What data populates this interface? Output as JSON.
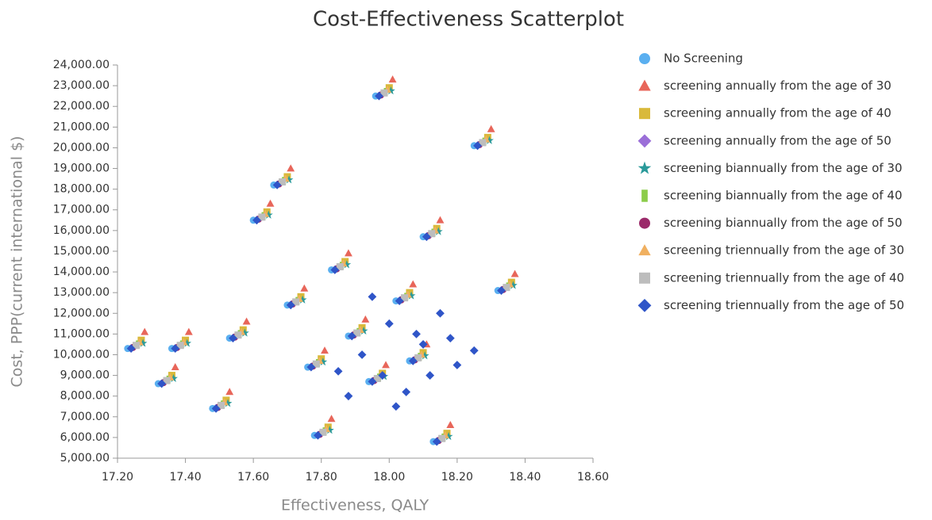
{
  "chart_data": {
    "type": "scatter",
    "title": "Cost-Effectiveness Scatterplot",
    "x_label": "Effectiveness, QALY",
    "y_label": "Cost, PPP(current international $)",
    "xlim": [
      17.2,
      18.6
    ],
    "xticks": [
      {
        "value": 17.2,
        "label": "17.20"
      },
      {
        "value": 17.4,
        "label": "17.40"
      },
      {
        "value": 17.6,
        "label": "17.60"
      },
      {
        "value": 17.8,
        "label": "17.80"
      },
      {
        "value": 18.0,
        "label": "18.00"
      },
      {
        "value": 18.2,
        "label": "18.20"
      },
      {
        "value": 18.4,
        "label": "18.40"
      },
      {
        "value": 18.6,
        "label": "18.60"
      }
    ],
    "ylim": [
      5000,
      24000
    ],
    "yticks": [
      {
        "value": 5000,
        "label": "5,000.00"
      },
      {
        "value": 6000,
        "label": "6,000.00"
      },
      {
        "value": 7000,
        "label": "7,000.00"
      },
      {
        "value": 8000,
        "label": "8,000.00"
      },
      {
        "value": 9000,
        "label": "9,000.00"
      },
      {
        "value": 10000,
        "label": "10,000.00"
      },
      {
        "value": 11000,
        "label": "11,000.00"
      },
      {
        "value": 12000,
        "label": "12,000.00"
      },
      {
        "value": 13000,
        "label": "13,000.00"
      },
      {
        "value": 14000,
        "label": "14,000.00"
      },
      {
        "value": 15000,
        "label": "15,000.00"
      },
      {
        "value": 16000,
        "label": "16,000.00"
      },
      {
        "value": 17000,
        "label": "17,000.00"
      },
      {
        "value": 18000,
        "label": "18,000.00"
      },
      {
        "value": 19000,
        "label": "19,000.00"
      },
      {
        "value": 20000,
        "label": "20,000.00"
      },
      {
        "value": 21000,
        "label": "21,000.00"
      },
      {
        "value": 22000,
        "label": "22,000.00"
      },
      {
        "value": 23000,
        "label": "23,000.00"
      },
      {
        "value": 24000,
        "label": "24,000.00"
      }
    ],
    "grid": false,
    "legend": "right",
    "series": [
      {
        "name": "No Screening",
        "color": "#5aaff0",
        "marker": "circle",
        "x": [
          17.23,
          17.32,
          17.36,
          17.48,
          17.53,
          17.6,
          17.66,
          17.7,
          17.76,
          17.78,
          17.83,
          17.88,
          17.94,
          17.96,
          18.02,
          18.06,
          18.1,
          18.13,
          18.25,
          18.32
        ],
        "y": [
          10300,
          8600,
          10300,
          7400,
          10800,
          16500,
          18200,
          12400,
          9400,
          6100,
          14100,
          10900,
          8700,
          22500,
          12600,
          9700,
          15700,
          5800,
          20100,
          13100
        ]
      },
      {
        "name": "screening annually from the age of 30",
        "color": "#e8665a",
        "marker": "triangle",
        "x": [
          17.28,
          17.37,
          17.41,
          17.53,
          17.58,
          17.65,
          17.71,
          17.75,
          17.81,
          17.83,
          17.88,
          17.93,
          17.99,
          18.01,
          18.07,
          18.11,
          18.15,
          18.18,
          18.3,
          18.37
        ],
        "y": [
          11100,
          9400,
          11100,
          8200,
          11600,
          17300,
          19000,
          13200,
          10200,
          6900,
          14900,
          11700,
          9500,
          23300,
          13400,
          10500,
          16500,
          6600,
          20900,
          13900
        ]
      },
      {
        "name": "screening annually from the age of 40",
        "color": "#d9b93a",
        "marker": "square",
        "x": [
          17.27,
          17.36,
          17.4,
          17.52,
          17.57,
          17.64,
          17.7,
          17.74,
          17.8,
          17.82,
          17.87,
          17.92,
          17.98,
          18.0,
          18.06,
          18.1,
          18.14,
          18.17,
          18.29,
          18.36
        ],
        "y": [
          10700,
          9000,
          10700,
          7800,
          11200,
          16900,
          18600,
          12800,
          9800,
          6500,
          14500,
          11300,
          9100,
          22900,
          13000,
          10100,
          16100,
          6200,
          20500,
          13500
        ]
      },
      {
        "name": "screening annually from the age of 50",
        "color": "#9b6fd8",
        "marker": "diamond",
        "x": [
          17.25,
          17.34,
          17.38,
          17.5,
          17.55,
          17.62,
          17.68,
          17.72,
          17.78,
          17.8,
          17.85,
          17.9,
          17.96,
          17.98,
          18.04,
          18.08,
          18.12,
          18.15,
          18.27,
          18.34
        ],
        "y": [
          10400,
          8700,
          10400,
          7500,
          10900,
          16600,
          18300,
          12500,
          9500,
          6200,
          14200,
          11000,
          8800,
          22600,
          12700,
          9800,
          15800,
          5900,
          20200,
          13200
        ]
      },
      {
        "name": "screening biannually from the age of 30",
        "color": "#2a9a9a",
        "marker": "star",
        "x": [
          17.275,
          17.365,
          17.405,
          17.525,
          17.575,
          17.645,
          17.705,
          17.745,
          17.805,
          17.825,
          17.875,
          17.925,
          17.985,
          18.005,
          18.065,
          18.105,
          18.145,
          18.175,
          18.295,
          18.365
        ],
        "y": [
          10550,
          8850,
          10550,
          7650,
          11050,
          16750,
          18450,
          12650,
          9650,
          6350,
          14350,
          11150,
          8950,
          22750,
          12850,
          9950,
          15950,
          6050,
          20350,
          13350
        ]
      },
      {
        "name": "screening biannually from the age of 40",
        "color": "#8ccc4a",
        "marker": "rect",
        "x": [
          17.26,
          17.35,
          17.39,
          17.51,
          17.56,
          17.63,
          17.69,
          17.73,
          17.79,
          17.81,
          17.86,
          17.91,
          17.97,
          17.99,
          18.05,
          18.09,
          18.13,
          18.16,
          18.28,
          18.35
        ],
        "y": [
          10500,
          8800,
          10500,
          7600,
          11000,
          16700,
          18400,
          12600,
          9600,
          6300,
          14300,
          11100,
          8900,
          22700,
          12800,
          9900,
          15900,
          6000,
          20300,
          13300
        ]
      },
      {
        "name": "screening biannually from the age of 50",
        "color": "#9b2a6a",
        "marker": "circle",
        "x": [
          17.245,
          17.335,
          17.375,
          17.495,
          17.545,
          17.615,
          17.675,
          17.715,
          17.775,
          17.795,
          17.845,
          17.895,
          17.955,
          17.975,
          18.035,
          18.075,
          18.115,
          18.145,
          18.265,
          18.335
        ],
        "y": [
          10350,
          8650,
          10350,
          7450,
          10850,
          16550,
          18250,
          12450,
          9450,
          6150,
          14150,
          10950,
          8750,
          22550,
          12650,
          9750,
          15750,
          5850,
          20150,
          13150
        ]
      },
      {
        "name": "screening triennually from the age of 30",
        "color": "#f0b060",
        "marker": "triangle",
        "x": [
          17.265,
          17.355,
          17.395,
          17.515,
          17.565,
          17.635,
          17.695,
          17.735,
          17.795,
          17.815,
          17.865,
          17.915,
          17.975,
          17.995,
          18.055,
          18.095,
          18.135,
          18.165,
          18.285,
          18.355
        ],
        "y": [
          10600,
          8900,
          10600,
          7700,
          11100,
          16800,
          18500,
          12700,
          9700,
          6400,
          14400,
          11200,
          9000,
          22800,
          12900,
          10000,
          16000,
          6100,
          20400,
          13400
        ]
      },
      {
        "name": "screening triennually from the age of 40",
        "color": "#bdbdbd",
        "marker": "square",
        "x": [
          17.255,
          17.345,
          17.385,
          17.505,
          17.555,
          17.625,
          17.685,
          17.725,
          17.785,
          17.805,
          17.855,
          17.905,
          17.965,
          17.985,
          18.045,
          18.085,
          18.125,
          18.155,
          18.275,
          18.345
        ],
        "y": [
          10450,
          8750,
          10450,
          7550,
          10950,
          16650,
          18350,
          12550,
          9550,
          6250,
          14250,
          11050,
          8850,
          22650,
          12750,
          9850,
          15850,
          5950,
          20250,
          13250
        ]
      },
      {
        "name": "screening triennually from the age of 50",
        "color": "#2f55c8",
        "marker": "diamond",
        "x": [
          17.24,
          17.33,
          17.37,
          17.49,
          17.54,
          17.61,
          17.67,
          17.71,
          17.77,
          17.79,
          17.84,
          17.89,
          17.95,
          17.97,
          18.03,
          18.07,
          18.11,
          18.14,
          18.26,
          18.33,
          17.92,
          17.98,
          18.0,
          18.05,
          18.1,
          18.15,
          18.2,
          17.95,
          18.02,
          18.08,
          17.88,
          18.12,
          18.18,
          17.85,
          18.25
        ],
        "y": [
          10300,
          8600,
          10300,
          7400,
          10800,
          16500,
          18200,
          12400,
          9400,
          6100,
          14100,
          10900,
          8700,
          22500,
          12600,
          9700,
          15700,
          5800,
          20100,
          13100,
          10000,
          9000,
          11500,
          8200,
          10500,
          12000,
          9500,
          12800,
          7500,
          11000,
          8000,
          9000,
          10800,
          9200,
          10200
        ]
      }
    ]
  }
}
